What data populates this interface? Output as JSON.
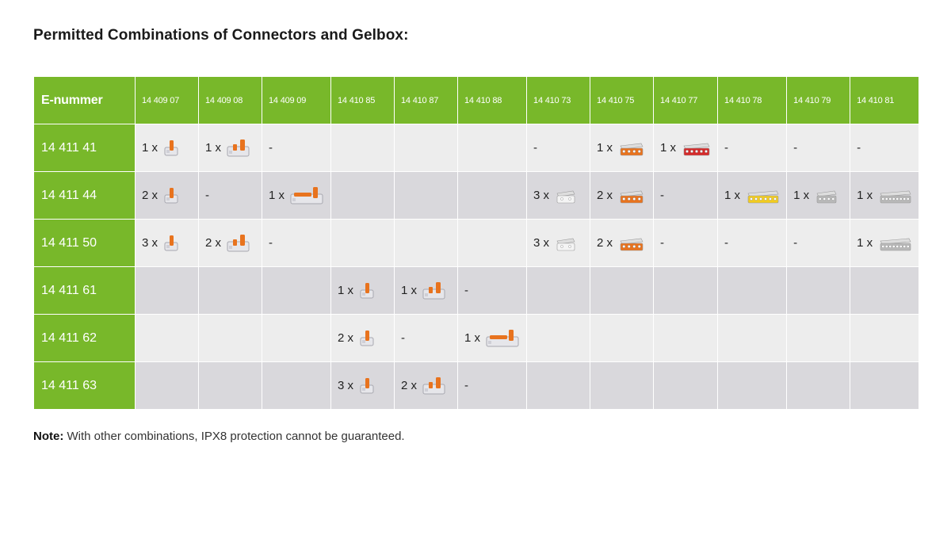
{
  "title": "Permitted Combinations of Connectors and Gelbox:",
  "table": {
    "corner_label": "E-nummer",
    "columns": [
      "14 409 07",
      "14 409 08",
      "14 409 09",
      "14 410 85",
      "14 410 87",
      "14 410 88",
      "14 410 73",
      "14 410 75",
      "14 410 77",
      "14 410 78",
      "14 410 79",
      "14 410 81"
    ],
    "rows": [
      {
        "label": "14 411 41",
        "cells": [
          {
            "qty": "1 x",
            "icon": "lever-connector-small-icon"
          },
          {
            "qty": "1 x",
            "icon": "lever-connector-medium-icon"
          },
          {
            "dash": "-"
          },
          {},
          {},
          {},
          {
            "dash": "-"
          },
          {
            "qty": "1 x",
            "icon": "push-connector-orange-icon"
          },
          {
            "qty": "1 x",
            "icon": "push-connector-red-icon"
          },
          {
            "dash": "-"
          },
          {
            "dash": "-"
          },
          {
            "dash": "-"
          }
        ]
      },
      {
        "label": "14 411 44",
        "cells": [
          {
            "qty": "2 x",
            "icon": "lever-connector-small-icon"
          },
          {
            "dash": "-"
          },
          {
            "qty": "1 x",
            "icon": "lever-connector-large-icon"
          },
          {},
          {},
          {},
          {
            "qty": "3 x",
            "icon": "push-connector-white-icon"
          },
          {
            "qty": "2 x",
            "icon": "push-connector-orange-icon"
          },
          {
            "dash": "-"
          },
          {
            "qty": "1 x",
            "icon": "push-connector-yellow-icon"
          },
          {
            "qty": "1 x",
            "icon": "push-connector-grey-icon"
          },
          {
            "qty": "1 x",
            "icon": "push-connector-grey-large-icon"
          }
        ]
      },
      {
        "label": "14 411 50",
        "cells": [
          {
            "qty": "3 x",
            "icon": "lever-connector-small-icon"
          },
          {
            "qty": "2 x",
            "icon": "lever-connector-medium-icon"
          },
          {
            "dash": "-"
          },
          {},
          {},
          {},
          {
            "qty": "3 x",
            "icon": "push-connector-white-icon"
          },
          {
            "qty": "2 x",
            "icon": "push-connector-orange-icon"
          },
          {
            "dash": "-"
          },
          {
            "dash": "-"
          },
          {
            "dash": "-"
          },
          {
            "qty": "1 x",
            "icon": "push-connector-grey-large-icon"
          }
        ]
      },
      {
        "label": "14 411 61",
        "cells": [
          {},
          {},
          {},
          {
            "qty": "1 x",
            "icon": "lever-connector-small-icon"
          },
          {
            "qty": "1 x",
            "icon": "lever-connector-medium-icon"
          },
          {
            "dash": "-"
          },
          {},
          {},
          {},
          {},
          {},
          {}
        ]
      },
      {
        "label": "14 411 62",
        "cells": [
          {},
          {},
          {},
          {
            "qty": "2 x",
            "icon": "lever-connector-small-icon"
          },
          {
            "dash": "-"
          },
          {
            "qty": "1 x",
            "icon": "lever-connector-large-icon"
          },
          {},
          {},
          {},
          {},
          {},
          {}
        ]
      },
      {
        "label": "14 411 63",
        "cells": [
          {},
          {},
          {},
          {
            "qty": "3 x",
            "icon": "lever-connector-small-icon"
          },
          {
            "qty": "2 x",
            "icon": "lever-connector-medium-icon"
          },
          {
            "dash": "-"
          },
          {},
          {},
          {},
          {},
          {},
          {}
        ]
      }
    ]
  },
  "note": {
    "label": "Note:",
    "text": " With other combinations, IPX8 protection cannot be guaranteed."
  },
  "colors": {
    "header_green": "#78b82a",
    "row_light": "#ededed",
    "row_dark": "#d9d8dc",
    "connector_orange": "#e8731e",
    "connector_red": "#d42a2a",
    "connector_yellow": "#f2cc1f",
    "connector_grey": "#b8b8b8"
  }
}
